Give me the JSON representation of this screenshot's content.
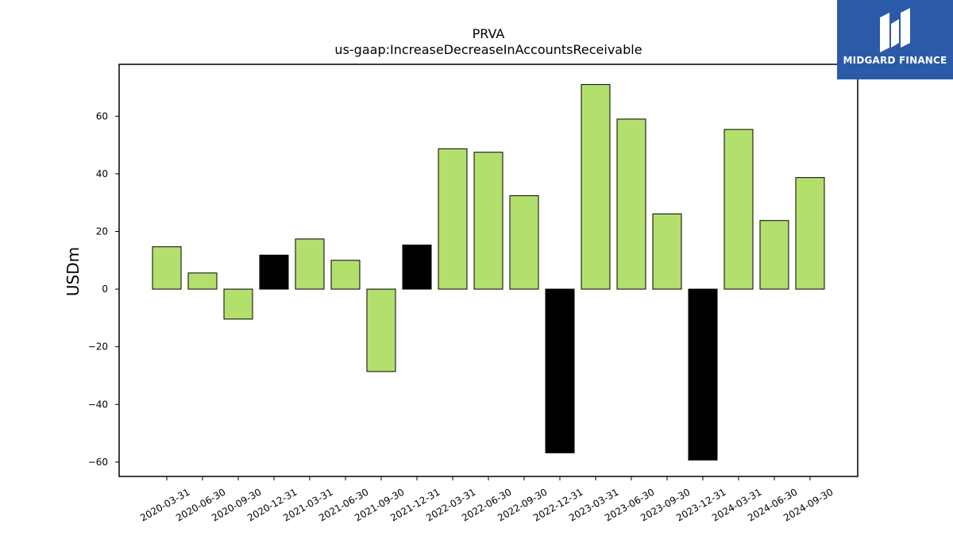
{
  "chart_data": {
    "type": "bar",
    "title": "PRVA",
    "subtitle": "us-gaap:IncreaseDecreaseInAccountsReceivable",
    "xlabel": "",
    "ylabel": "USDm",
    "ylim": [
      -65,
      78
    ],
    "yticks": [
      -60,
      -40,
      -20,
      0,
      20,
      40,
      60
    ],
    "grid": false,
    "categories": [
      "2020-03-31",
      "2020-06-30",
      "2020-09-30",
      "2020-12-31",
      "2021-03-31",
      "2021-06-30",
      "2021-09-30",
      "2021-12-31",
      "2022-03-31",
      "2022-06-30",
      "2022-09-30",
      "2022-12-31",
      "2023-03-31",
      "2023-06-30",
      "2023-09-30",
      "2023-12-31",
      "2024-03-31",
      "2024-06-30",
      "2024-09-30"
    ],
    "values": [
      14.7,
      5.6,
      -10.4,
      11.8,
      17.4,
      10.0,
      -28.6,
      15.3,
      48.7,
      47.5,
      32.4,
      -56.8,
      71.0,
      59.0,
      26.1,
      -59.3,
      55.4,
      23.8,
      38.7
    ],
    "bar_colors": [
      "#b3df6c",
      "#b3df6c",
      "#b3df6c",
      "#000000",
      "#b3df6c",
      "#b3df6c",
      "#b3df6c",
      "#000000",
      "#b3df6c",
      "#b3df6c",
      "#b3df6c",
      "#000000",
      "#b3df6c",
      "#b3df6c",
      "#b3df6c",
      "#000000",
      "#b3df6c",
      "#b3df6c",
      "#b3df6c"
    ]
  },
  "logo": {
    "text": "MIDGARD FINANCE",
    "background": "#2b5aa8"
  }
}
